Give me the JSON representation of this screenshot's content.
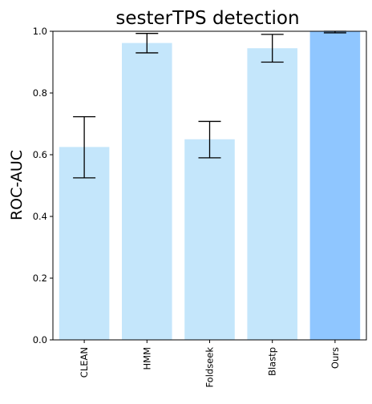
{
  "chart_data": {
    "type": "bar",
    "title": "sesterTPS detection",
    "xlabel": "",
    "ylabel": "ROC-AUC",
    "categories": [
      "CLEAN",
      "HMM",
      "Foldseek",
      "Blastp",
      "Ours"
    ],
    "values": [
      0.625,
      0.962,
      0.65,
      0.945,
      1.0
    ],
    "error_low": [
      0.525,
      0.93,
      0.59,
      0.9,
      0.995
    ],
    "error_high": [
      0.723,
      0.993,
      0.708,
      0.99,
      1.0
    ],
    "ylim": [
      0,
      1.0
    ],
    "yticks": [
      "0.0",
      "0.2",
      "0.4",
      "0.6",
      "0.8",
      "1.0"
    ],
    "grid": false,
    "colors": {
      "baseline": "#c4e6fb",
      "highlight": "#8fc6ff",
      "error_bar": "#000000",
      "axis": "#000000"
    },
    "highlight_category": "Ours"
  }
}
